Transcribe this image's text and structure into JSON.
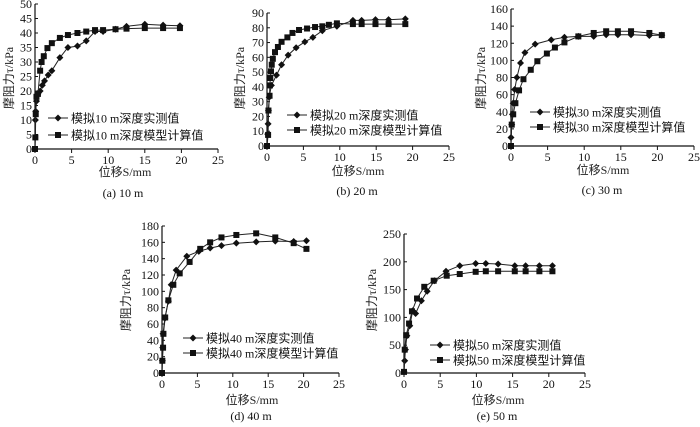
{
  "chart_data": [
    {
      "type": "line",
      "caption": "(a) 10 m",
      "xlabel": "位移S/mm",
      "ylabel": "摩阻力τ/kPa",
      "xlim": [
        0,
        25
      ],
      "ylim": [
        0,
        50
      ],
      "xticks": [
        0,
        5,
        10,
        15,
        20,
        25
      ],
      "yticks": [
        0,
        5,
        10,
        15,
        20,
        25,
        30,
        35,
        40,
        45,
        50
      ],
      "legend_position": "lower-middle",
      "series": [
        {
          "name": "模拟10 m深度实测值",
          "marker": "diamond",
          "x": [
            0,
            0.05,
            0.1,
            0.2,
            0.4,
            0.7,
            1,
            1.3,
            1.8,
            2.3,
            3.4,
            4.5,
            5.8,
            7,
            8.2,
            9.3,
            11,
            12.5,
            15,
            17.5,
            19.8
          ],
          "y": [
            0,
            10,
            13,
            16.5,
            19,
            20,
            22,
            23.5,
            25.5,
            27,
            31.5,
            35,
            35.5,
            37.3,
            40.5,
            40.5,
            41.3,
            42.3,
            43,
            42.7,
            42.5
          ]
        },
        {
          "name": "模拟10 m深度模型计算值",
          "marker": "square",
          "x": [
            0,
            0.05,
            0.1,
            0.2,
            0.4,
            0.7,
            0.9,
            1.2,
            1.7,
            2.3,
            3.4,
            4.5,
            5.8,
            7,
            8.2,
            9.3,
            11,
            12.5,
            15,
            17.5,
            19.8
          ],
          "y": [
            0,
            4,
            12,
            18,
            19,
            27,
            30,
            32,
            34.8,
            36.5,
            38.3,
            39.3,
            40,
            40.5,
            41,
            41,
            41.3,
            41.5,
            41.7,
            41.7,
            41.7
          ]
        }
      ]
    },
    {
      "type": "line",
      "caption": "(b) 20 m",
      "xlabel": "位移S/mm",
      "ylabel": "摩阻力τ/kPa",
      "xlim": [
        0,
        25
      ],
      "ylim": [
        0,
        90
      ],
      "xticks": [
        0,
        5,
        10,
        15,
        20,
        25
      ],
      "yticks": [
        0,
        10,
        20,
        30,
        40,
        50,
        60,
        70,
        80,
        90
      ],
      "legend_position": "lower-middle",
      "series": [
        {
          "name": "模拟20 m深度实测值",
          "marker": "diamond",
          "x": [
            0,
            0.1,
            0.15,
            0.2,
            0.3,
            0.6,
            1.3,
            2,
            2.9,
            4,
            5.2,
            6.3,
            7.6,
            9.6,
            11.8,
            13,
            14.9,
            16.7,
            19
          ],
          "y": [
            0,
            8,
            15,
            24,
            33,
            41,
            48,
            55,
            61.5,
            66.5,
            70.5,
            73.5,
            78,
            81,
            85,
            85,
            85.5,
            85.5,
            86
          ]
        },
        {
          "name": "模拟20 m深度模型计算值",
          "marker": "square",
          "x": [
            0,
            0.15,
            0.2,
            0.35,
            0.4,
            0.45,
            0.55,
            0.65,
            0.8,
            1.1,
            1.5,
            2,
            2.8,
            3.5,
            4.4,
            5.5,
            6.6,
            7.6,
            8.5,
            9.6,
            11.8,
            13,
            14.9,
            16.7,
            19
          ],
          "y": [
            0,
            7.5,
            24,
            34,
            41,
            46,
            50.5,
            55,
            59,
            63.5,
            67,
            70.5,
            73.5,
            76.5,
            78.5,
            79.5,
            80.5,
            81,
            82,
            83,
            82.5,
            82.5,
            82.5,
            82.5,
            82.5
          ]
        }
      ]
    },
    {
      "type": "line",
      "caption": "(c)  30 m",
      "xlabel": "位移S/mm",
      "ylabel": "摩阻力τ/kPa",
      "xlim": [
        0,
        25
      ],
      "ylim": [
        0,
        160
      ],
      "xticks": [
        0,
        5,
        10,
        15,
        20,
        25
      ],
      "yticks": [
        0,
        20,
        40,
        60,
        80,
        100,
        120,
        140,
        160
      ],
      "legend_position": "lower-middle",
      "series": [
        {
          "name": "模拟30 m深度实测值",
          "marker": "diamond",
          "x": [
            0,
            0.1,
            0.2,
            0.3,
            0.5,
            0.8,
            1.3,
            1.9,
            3.3,
            5.5,
            7.3,
            9.2,
            11.3,
            13,
            14.6,
            16.4,
            18.9,
            20.6
          ],
          "y": [
            10,
            25,
            37,
            50,
            66,
            80,
            97,
            109,
            119,
            124,
            127,
            128,
            128,
            130,
            130,
            130,
            129,
            129.5
          ]
        },
        {
          "name": "模拟30 m深度模型计算值",
          "marker": "square",
          "x": [
            0,
            0.1,
            0.3,
            0.6,
            1.1,
            1.7,
            2.7,
            3.6,
            4.9,
            6,
            7.3,
            9.2,
            11.3,
            13,
            14.6,
            16.4,
            18.9,
            20.6
          ],
          "y": [
            0,
            25,
            37,
            50,
            65,
            78,
            89,
            99,
            108,
            115,
            121,
            128,
            132,
            134,
            134,
            134,
            132,
            129.5
          ]
        }
      ]
    },
    {
      "type": "line",
      "caption": "(d) 40 m",
      "xlabel": "位移S/mm",
      "ylabel": "摩阻力τ/kPa",
      "xlim": [
        0,
        25
      ],
      "ylim": [
        0,
        180
      ],
      "xticks": [
        0,
        5,
        10,
        15,
        20,
        25
      ],
      "yticks": [
        0,
        20,
        40,
        60,
        80,
        100,
        120,
        140,
        160,
        180
      ],
      "legend_position": "lower-middle",
      "series": [
        {
          "name": "模拟40 m深度实测值",
          "marker": "diamond",
          "x": [
            0,
            0.05,
            0.1,
            0.15,
            0.4,
            0.9,
            1.3,
            2,
            3.5,
            5.2,
            6.8,
            8.4,
            10.5,
            13.3,
            16,
            18.6,
            20.4
          ],
          "y": [
            0,
            15,
            31,
            48,
            67,
            88,
            108,
            126,
            143,
            149,
            153,
            156,
            159,
            160.5,
            161.5,
            161,
            162
          ]
        },
        {
          "name": "模拟40 m深度模型计算值",
          "marker": "square",
          "x": [
            0,
            0.05,
            0.15,
            0.2,
            0.45,
            0.9,
            1.6,
            2.5,
            3.9,
            5.4,
            6.8,
            8.4,
            10.5,
            13.3,
            16,
            18.6,
            20.4
          ],
          "y": [
            0,
            15,
            31,
            48,
            68,
            89,
            108,
            122,
            136,
            152,
            160,
            166,
            169,
            171,
            166,
            159,
            152
          ]
        }
      ]
    },
    {
      "type": "line",
      "caption": "(e) 50 m",
      "xlabel": "位移S/mm",
      "ylabel": "摩阻力τ/kPa",
      "xlim": [
        0,
        25
      ],
      "ylim": [
        0,
        250
      ],
      "xticks": [
        0,
        5,
        10,
        15,
        20,
        25
      ],
      "yticks": [
        0,
        50,
        100,
        150,
        200,
        250
      ],
      "legend_position": "lower-middle",
      "series": [
        {
          "name": "模拟50 m深度实测值",
          "marker": "diamond",
          "x": [
            0,
            0.1,
            0.2,
            0.4,
            0.8,
            1.2,
            1.6,
            2.4,
            3.2,
            4.2,
            5.8,
            7.7,
            9.9,
            11.3,
            13,
            15.3,
            16.8,
            18.7,
            20.5
          ],
          "y": [
            2,
            22,
            42,
            67,
            85,
            112,
            107,
            130,
            147,
            166,
            183,
            193,
            197,
            197,
            196,
            193,
            193,
            193,
            193
          ]
        },
        {
          "name": "模拟50 m深度模型计算值",
          "marker": "square",
          "x": [
            0,
            0.1,
            0.3,
            0.7,
            1.1,
            1.8,
            2.8,
            4.1,
            5.9,
            7.7,
            9.9,
            11.3,
            13,
            15.3,
            16.8,
            18.7,
            20.5
          ],
          "y": [
            2,
            42,
            68,
            89,
            111,
            134,
            155,
            166,
            175,
            178,
            182,
            183,
            183,
            183,
            183,
            183,
            183
          ]
        }
      ]
    }
  ]
}
